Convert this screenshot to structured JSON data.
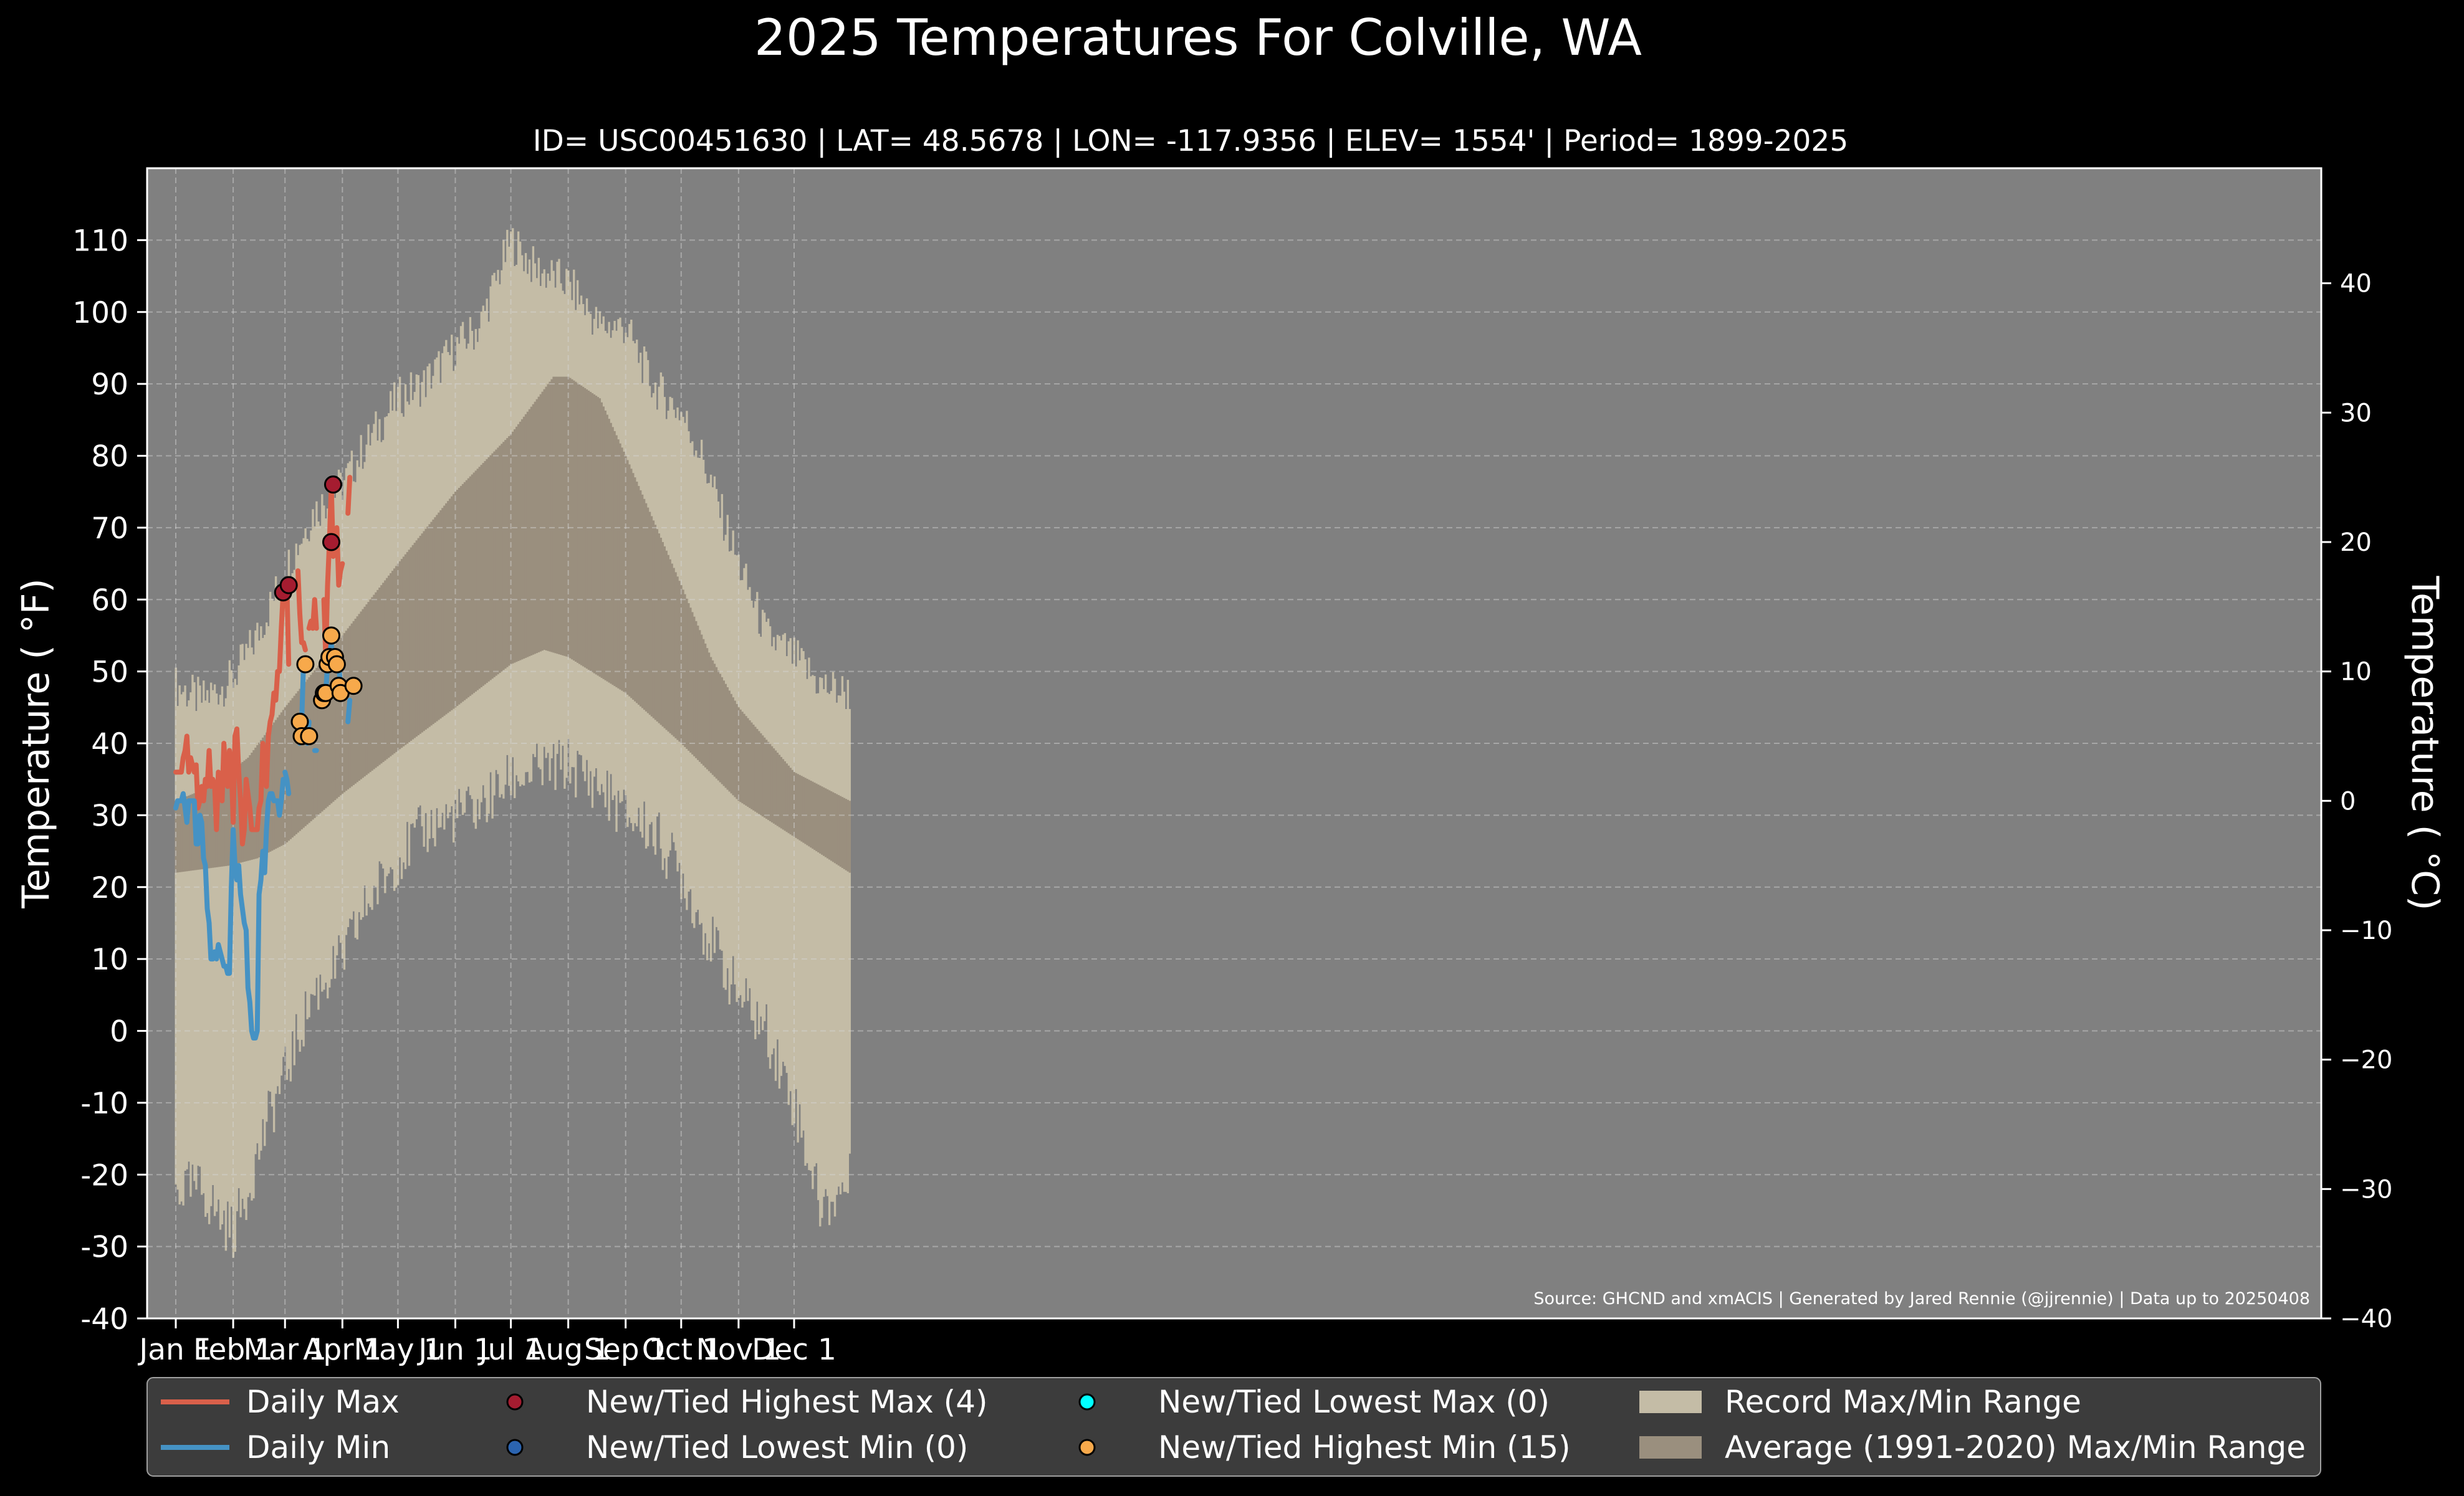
{
  "chart_data": {
    "type": "line",
    "title": "2025 Temperatures For Colville, WA",
    "subtitle": "ID= USC00451630 | LAT= 48.5678 | LON= -117.9356 | ELEV= 1554' | Period= 1899-2025",
    "ylabel": "Temperature ( °F)",
    "ylabel_right": "Temperature ( °C)",
    "source": "Source: GHCND and xmACIS | Generated by Jared Rennie (@jjrennie) | Data up to 20250408",
    "ylim": [
      -40,
      120
    ],
    "y_ticks": [
      -40,
      -30,
      -20,
      -10,
      0,
      10,
      20,
      30,
      40,
      50,
      60,
      70,
      80,
      90,
      100,
      110
    ],
    "y_ticks_right": [
      -40,
      -30,
      -20,
      -10,
      0,
      10,
      20,
      30,
      40
    ],
    "y_ticks_right_labels": [
      "−40",
      "−30",
      "−20",
      "−10",
      "0",
      "10",
      "20",
      "30",
      "40"
    ],
    "x_range": [
      1,
      365
    ],
    "x_ticks": [
      {
        "day": 1,
        "label": "Jan 1"
      },
      {
        "day": 32,
        "label": "Feb 1"
      },
      {
        "day": 60,
        "label": "Mar 1"
      },
      {
        "day": 91,
        "label": "Apr 1"
      },
      {
        "day": 121,
        "label": "May 1"
      },
      {
        "day": 152,
        "label": "Jun 1"
      },
      {
        "day": 182,
        "label": "Jul 1"
      },
      {
        "day": 213,
        "label": "Aug 1"
      },
      {
        "day": 244,
        "label": "Sep 1"
      },
      {
        "day": 274,
        "label": "Oct 1"
      },
      {
        "day": 305,
        "label": "Nov 1"
      },
      {
        "day": 335,
        "label": "Dec 1"
      }
    ],
    "grid": true,
    "legend_position": "bottom",
    "record_max_anchors": [
      [
        1,
        48
      ],
      [
        15,
        46
      ],
      [
        32,
        49
      ],
      [
        45,
        55
      ],
      [
        60,
        64
      ],
      [
        75,
        72
      ],
      [
        91,
        76
      ],
      [
        105,
        82
      ],
      [
        121,
        88
      ],
      [
        135,
        90
      ],
      [
        152,
        95
      ],
      [
        165,
        98
      ],
      [
        182,
        110
      ],
      [
        195,
        106
      ],
      [
        213,
        104
      ],
      [
        230,
        98
      ],
      [
        244,
        98
      ],
      [
        258,
        90
      ],
      [
        274,
        86
      ],
      [
        285,
        80
      ],
      [
        305,
        65
      ],
      [
        320,
        55
      ],
      [
        335,
        52
      ],
      [
        350,
        48
      ],
      [
        365,
        47
      ]
    ],
    "record_min_anchors": [
      [
        1,
        -22
      ],
      [
        15,
        -22
      ],
      [
        25,
        -26
      ],
      [
        32,
        -28
      ],
      [
        40,
        -22
      ],
      [
        50,
        -13
      ],
      [
        60,
        -6
      ],
      [
        75,
        5
      ],
      [
        91,
        10
      ],
      [
        105,
        18
      ],
      [
        121,
        24
      ],
      [
        135,
        28
      ],
      [
        152,
        30
      ],
      [
        165,
        31
      ],
      [
        182,
        35
      ],
      [
        195,
        36
      ],
      [
        213,
        37
      ],
      [
        230,
        34
      ],
      [
        244,
        30
      ],
      [
        258,
        28
      ],
      [
        274,
        22
      ],
      [
        285,
        15
      ],
      [
        305,
        5
      ],
      [
        320,
        0
      ],
      [
        335,
        -10
      ],
      [
        350,
        -25
      ],
      [
        365,
        -21
      ]
    ],
    "avg_max_anchors": [
      [
        1,
        32
      ],
      [
        20,
        34
      ],
      [
        40,
        38
      ],
      [
        60,
        45
      ],
      [
        91,
        55
      ],
      [
        121,
        65
      ],
      [
        152,
        75
      ],
      [
        182,
        83
      ],
      [
        205,
        91
      ],
      [
        213,
        91
      ],
      [
        230,
        88
      ],
      [
        244,
        80
      ],
      [
        274,
        62
      ],
      [
        290,
        52
      ],
      [
        305,
        45
      ],
      [
        335,
        36
      ],
      [
        365,
        32
      ]
    ],
    "avg_min_anchors": [
      [
        1,
        22
      ],
      [
        30,
        23
      ],
      [
        45,
        24
      ],
      [
        60,
        26
      ],
      [
        91,
        33
      ],
      [
        121,
        39
      ],
      [
        152,
        45
      ],
      [
        182,
        51
      ],
      [
        200,
        53
      ],
      [
        213,
        52
      ],
      [
        244,
        47
      ],
      [
        274,
        40
      ],
      [
        305,
        32
      ],
      [
        335,
        27
      ],
      [
        365,
        22
      ]
    ],
    "series": [
      {
        "name": "Daily Max",
        "color": "#d9604a",
        "segments": [
          [
            [
              1,
              36
            ],
            [
              3,
              36
            ],
            [
              4,
              36
            ],
            [
              5,
              38
            ],
            [
              6,
              39
            ],
            [
              7,
              41
            ],
            [
              8,
              36
            ],
            [
              9,
              38
            ],
            [
              10,
              37
            ],
            [
              11,
              36
            ],
            [
              12,
              37
            ],
            [
              13,
              31
            ],
            [
              14,
              32
            ],
            [
              15,
              34
            ],
            [
              16,
              32
            ],
            [
              17,
              35
            ],
            [
              18,
              34
            ],
            [
              19,
              39
            ],
            [
              20,
              34
            ],
            [
              21,
              35
            ],
            [
              22,
              34
            ],
            [
              23,
              28
            ],
            [
              24,
              36
            ],
            [
              25,
              34
            ],
            [
              26,
              32
            ],
            [
              27,
              40
            ],
            [
              28,
              35
            ],
            [
              29,
              34
            ],
            [
              30,
              39
            ],
            [
              31,
              37
            ],
            [
              32,
              29
            ],
            [
              33,
              41
            ],
            [
              34,
              42
            ],
            [
              35,
              36
            ],
            [
              36,
              32
            ],
            [
              37,
              26
            ],
            [
              38,
              28
            ],
            [
              39,
              35
            ],
            [
              40,
              33
            ],
            [
              41,
              31
            ],
            [
              42,
              28
            ],
            [
              43,
              28
            ],
            [
              44,
              28
            ],
            [
              45,
              28
            ],
            [
              46,
              31
            ],
            [
              47,
              32
            ],
            [
              48,
              40
            ],
            [
              49,
              38
            ],
            [
              50,
              34
            ],
            [
              51,
              41
            ],
            [
              52,
              43
            ],
            [
              53,
              44
            ],
            [
              54,
              47
            ],
            [
              55,
              46
            ],
            [
              56,
              50
            ],
            [
              57,
              50
            ],
            [
              58,
              56
            ],
            [
              59,
              61
            ],
            [
              60,
              61
            ],
            [
              61,
              62
            ],
            [
              62,
              51
            ]
          ],
          [
            [
              67,
              64
            ],
            [
              68,
              58
            ],
            [
              69,
              54
            ],
            [
              70,
              54
            ],
            [
              71,
              53
            ]
          ],
          [
            [
              73,
              56
            ],
            [
              74,
              57
            ],
            [
              75,
              56
            ],
            [
              76,
              60
            ],
            [
              77,
              56
            ]
          ],
          [
            [
              81,
              60
            ],
            [
              82,
              52
            ],
            [
              83,
              62
            ],
            [
              84,
              68
            ],
            [
              85,
              76
            ],
            [
              86,
              66
            ]
          ],
          [
            [
              88,
              70
            ],
            [
              89,
              62
            ],
            [
              90,
              64
            ],
            [
              91,
              65
            ]
          ],
          [
            [
              94,
              72
            ],
            [
              95,
              77
            ]
          ]
        ]
      },
      {
        "name": "Daily Min",
        "color": "#4592c4",
        "segments": [
          [
            [
              1,
              31
            ],
            [
              2,
              32
            ],
            [
              3,
              32
            ],
            [
              4,
              32
            ],
            [
              5,
              33
            ],
            [
              6,
              31
            ],
            [
              7,
              29
            ],
            [
              8,
              32
            ],
            [
              9,
              32
            ],
            [
              10,
              32
            ],
            [
              11,
              32
            ],
            [
              12,
              26
            ],
            [
              13,
              26
            ],
            [
              14,
              30
            ],
            [
              15,
              29
            ],
            [
              16,
              24
            ],
            [
              17,
              23
            ],
            [
              18,
              17
            ],
            [
              19,
              15
            ],
            [
              20,
              10
            ],
            [
              21,
              10
            ],
            [
              22,
              11
            ],
            [
              23,
              10
            ],
            [
              24,
              12
            ],
            [
              25,
              11
            ],
            [
              26,
              10
            ],
            [
              27,
              9
            ],
            [
              28,
              9
            ],
            [
              29,
              8
            ],
            [
              30,
              8
            ],
            [
              31,
              20
            ],
            [
              32,
              28
            ],
            [
              33,
              23
            ],
            [
              34,
              21
            ],
            [
              35,
              23
            ],
            [
              36,
              19
            ],
            [
              37,
              17
            ],
            [
              38,
              15
            ],
            [
              39,
              14
            ],
            [
              40,
              6
            ],
            [
              41,
              4
            ],
            [
              42,
              0
            ],
            [
              43,
              -1
            ],
            [
              44,
              -1
            ],
            [
              45,
              0
            ],
            [
              46,
              19
            ],
            [
              47,
              21
            ],
            [
              48,
              25
            ],
            [
              49,
              22
            ],
            [
              50,
              28
            ],
            [
              51,
              32
            ],
            [
              52,
              33
            ],
            [
              53,
              33
            ],
            [
              54,
              32
            ],
            [
              55,
              32
            ],
            [
              56,
              32
            ],
            [
              57,
              30
            ],
            [
              58,
              32
            ],
            [
              59,
              35
            ]
          ],
          [
            [
              60,
              36
            ],
            [
              61,
              35
            ],
            [
              62,
              33
            ]
          ],
          [
            [
              68,
              40
            ],
            [
              69,
              43
            ],
            [
              70,
              51
            ]
          ],
          [
            [
              72,
              40
            ],
            [
              73,
              43
            ]
          ],
          [
            [
              76,
              39
            ],
            [
              77,
              39
            ]
          ],
          [
            [
              80,
              46
            ],
            [
              81,
              46
            ],
            [
              82,
              47
            ],
            [
              83,
              51
            ],
            [
              84,
              52
            ],
            [
              85,
              54
            ],
            [
              86,
              51
            ],
            [
              87,
              52
            ],
            [
              88,
              52
            ],
            [
              89,
              51
            ],
            [
              90,
              48
            ],
            [
              91,
              47
            ]
          ],
          [
            [
              94,
              43
            ],
            [
              95,
              46
            ]
          ]
        ]
      }
    ],
    "new_highest_max": [
      [
        59,
        61
      ],
      [
        62,
        62
      ],
      [
        85,
        68
      ],
      [
        86,
        76
      ]
    ],
    "new_lowest_min": [],
    "new_lowest_max": [],
    "new_highest_min": [
      [
        68,
        43
      ],
      [
        69,
        41
      ],
      [
        71,
        51
      ],
      [
        73,
        41
      ],
      [
        80,
        46
      ],
      [
        81,
        47
      ],
      [
        82,
        47
      ],
      [
        83,
        51
      ],
      [
        84,
        52
      ],
      [
        85,
        55
      ],
      [
        87,
        52
      ],
      [
        88,
        51
      ],
      [
        89,
        48
      ],
      [
        90,
        47
      ],
      [
        97,
        48
      ]
    ],
    "legend": [
      {
        "label": "Daily Max",
        "kind": "line",
        "color": "#d9604a"
      },
      {
        "label": "Daily Min",
        "kind": "line",
        "color": "#4592c4"
      },
      {
        "label": "New/Tied Highest Max (4)",
        "kind": "dot",
        "color": "#a51c30"
      },
      {
        "label": "New/Tied Lowest Min (0)",
        "kind": "dot",
        "color": "#2b64b0"
      },
      {
        "label": "New/Tied Lowest Max (0)",
        "kind": "dot",
        "color": "#00ffff"
      },
      {
        "label": "New/Tied Highest Min (15)",
        "kind": "dot",
        "color": "#f7a94b"
      },
      {
        "label": "Record Max/Min Range",
        "kind": "patch",
        "color": "#c4bca6"
      },
      {
        "label": "Average (1991-2020) Max/Min Range",
        "kind": "patch",
        "color": "#9a8f7e"
      }
    ],
    "colors": {
      "plot_bg": "#808080",
      "record_band": "#c4bca6",
      "avg_band": "#9a8f7e",
      "figure_bg": "#000000",
      "legend_bg": "#3c3c3c"
    }
  }
}
